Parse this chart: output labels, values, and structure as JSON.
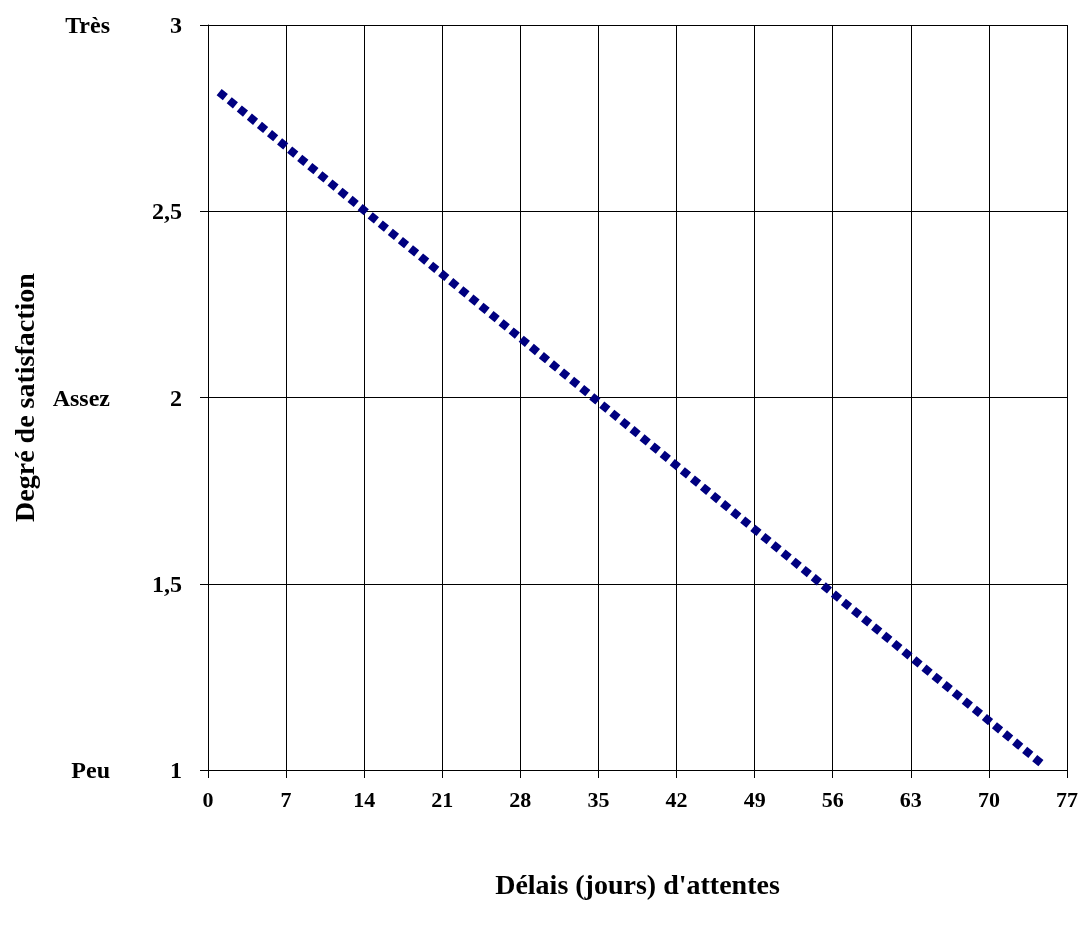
{
  "chart_data": {
    "type": "line",
    "xlabel": "Délais (jours) d'attentes",
    "ylabel": "Degré de satisfaction",
    "x": [
      1,
      75
    ],
    "series": [
      {
        "color": "#000080",
        "values": [
          2.82,
          1.01
        ]
      }
    ],
    "xlim": [
      0,
      77
    ],
    "xticks": [
      0,
      7,
      14,
      21,
      28,
      35,
      42,
      49,
      56,
      63,
      70,
      77
    ],
    "ylim": [
      1,
      3
    ],
    "yticks": [
      1,
      {
        "value": 1.5,
        "label": "1,5"
      },
      2,
      {
        "value": 2.5,
        "label": "2,5"
      },
      3
    ],
    "annotations": [
      "Peu",
      "Assez",
      "Très"
    ],
    "grid": true,
    "marker": "none",
    "line_style": "dotted"
  }
}
